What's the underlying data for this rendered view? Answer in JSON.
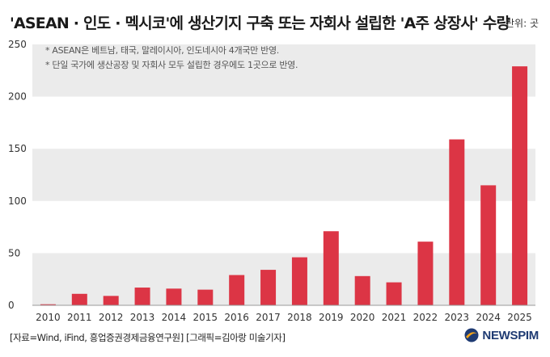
{
  "header": {
    "title": "'ASEAN · 인도 · 멕시코'에 생산기지 구축 또는 자회사 설립한 'A주 상장사' 수량",
    "unit": "단위: 곳"
  },
  "notes": [
    "* ASEAN은 베트남, 태국, 말레이시아, 인도네시아 4개국만 반영.",
    "* 단일 국가에 생산공장 및 자회사 모두 설립한 경우에도 1곳으로 반영."
  ],
  "footer": {
    "source": "[자료=Wind, iFind, 흥업증권경제금융연구원] [그래픽=김아랑 미술기자]",
    "logo_text": "NEWSPIM"
  },
  "colors": {
    "bar": "#dc3545",
    "bar_dark": "#c42a36",
    "band": "#ebebeb",
    "logo_blue": "#1f3b73",
    "logo_orange": "#f2a31b"
  },
  "chart_data": {
    "type": "bar",
    "title": "'ASEAN · 인도 · 멕시코'에 생산기지 구축 또는 자회사 설립한 'A주 상장사' 수량",
    "xlabel": "",
    "ylabel": "단위: 곳",
    "categories": [
      "2010",
      "2011",
      "2012",
      "2013",
      "2014",
      "2015",
      "2016",
      "2017",
      "2018",
      "2019",
      "2020",
      "2021",
      "2022",
      "2023",
      "2024",
      "2025"
    ],
    "values": [
      1,
      11,
      9,
      17,
      16,
      15,
      29,
      34,
      46,
      71,
      28,
      22,
      61,
      159,
      115,
      229
    ],
    "ylim": [
      0,
      250
    ],
    "yticks": [
      0,
      50,
      100,
      150,
      200,
      250
    ],
    "grid": "alternating-bands"
  }
}
